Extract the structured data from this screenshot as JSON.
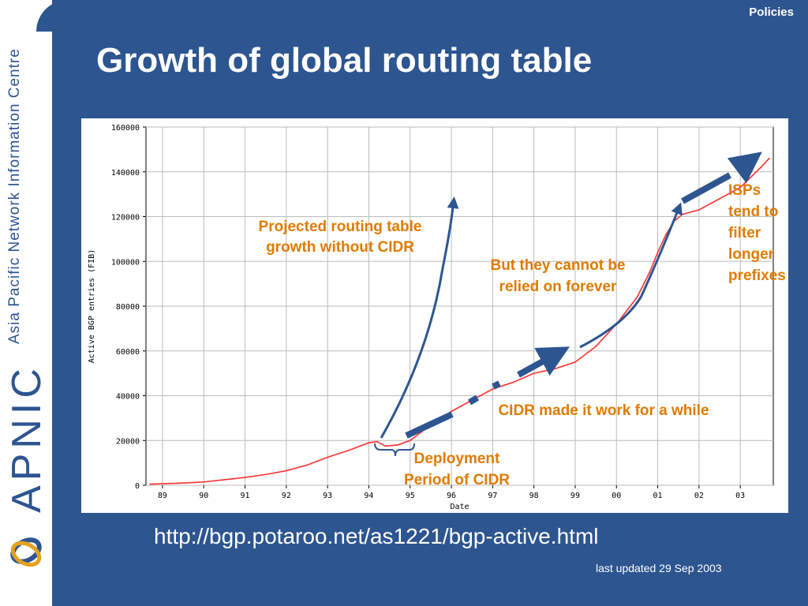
{
  "header": {
    "section_label": "Policies",
    "title": "Growth of global routing table"
  },
  "sidebar": {
    "org_name": "Asia Pacific Network Information Centre",
    "brand": "APNIC"
  },
  "footer": {
    "source_url": "http://bgp.potaroo.net/as1221/bgp-active.html",
    "last_updated": "last updated 29 Sep 2003"
  },
  "colors": {
    "background": "#2d5590",
    "series": "#ff3030",
    "annotation": "#e07b00",
    "arrow": "#2d5590"
  },
  "chart_data": {
    "type": "line",
    "title": "",
    "xlabel": "Date",
    "ylabel": "Active BGP entries (FIB)",
    "xlim": [
      1988.6,
      2003.8
    ],
    "ylim": [
      0,
      160000
    ],
    "x_ticks": [
      1989,
      1990,
      1991,
      1992,
      1993,
      1994,
      1995,
      1996,
      1997,
      1998,
      1999,
      2000,
      2001,
      2002,
      2003
    ],
    "x_tick_labels": [
      "89",
      "90",
      "91",
      "92",
      "93",
      "94",
      "95",
      "96",
      "97",
      "98",
      "99",
      "00",
      "01",
      "02",
      "03"
    ],
    "y_ticks": [
      0,
      20000,
      40000,
      60000,
      80000,
      100000,
      120000,
      140000,
      160000
    ],
    "y_tick_labels": [
      "0",
      "20000",
      "40000",
      "60000",
      "80000",
      "100000",
      "120000",
      "140000",
      "160000"
    ],
    "grid": true,
    "series": [
      {
        "name": "",
        "x": [
          1988.7,
          1989.5,
          1990.0,
          1990.5,
          1991.0,
          1991.5,
          1992.0,
          1992.5,
          1993.0,
          1993.5,
          1994.0,
          1994.2,
          1994.4,
          1994.7,
          1995.0,
          1995.5,
          1996.0,
          1996.5,
          1997.0,
          1997.5,
          1998.0,
          1998.5,
          1999.0,
          1999.5,
          2000.0,
          2000.5,
          2000.8,
          2001.0,
          2001.2,
          2001.4,
          2001.6,
          2002.0,
          2002.5,
          2003.0,
          2003.5,
          2003.7
        ],
        "y": [
          500,
          1000,
          1500,
          2500,
          3500,
          4800,
          6500,
          9000,
          12500,
          15500,
          19000,
          19500,
          17500,
          18000,
          20000,
          27000,
          33000,
          38000,
          43000,
          46000,
          50000,
          52000,
          55000,
          62000,
          72000,
          84000,
          95000,
          104000,
          112000,
          118000,
          121000,
          123000,
          128000,
          133000,
          142000,
          146000
        ]
      }
    ],
    "annotations": [
      {
        "text_lines": [
          "Projected routing table",
          "growth without CIDR"
        ]
      },
      {
        "text_lines": [
          "But they cannot be",
          "relied on forever"
        ]
      },
      {
        "text_lines": [
          "ISPs",
          "tend to",
          "filter",
          "longer",
          "prefixes"
        ]
      },
      {
        "text_lines": [
          "CIDR made it work for a while"
        ]
      },
      {
        "text_lines": [
          "Deployment",
          "Period of CIDR"
        ]
      }
    ]
  }
}
